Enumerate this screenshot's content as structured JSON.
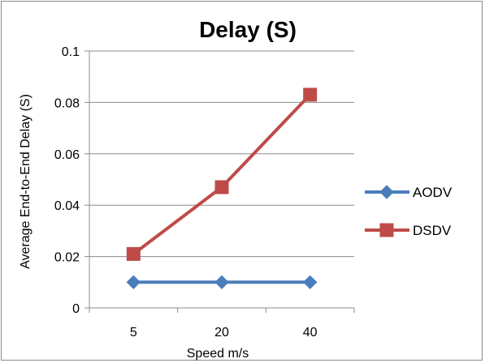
{
  "chart_data": {
    "type": "line",
    "title": "Delay (S)",
    "xlabel": "Speed m/s",
    "ylabel": "Average  End-to-End Delay (S)",
    "categories": [
      "5",
      "20",
      "40"
    ],
    "ylim": [
      0,
      0.1
    ],
    "yticks": [
      "0",
      "0.02",
      "0.04",
      "0.06",
      "0.08",
      "0.1"
    ],
    "ytick_values": [
      0,
      0.02,
      0.04,
      0.06,
      0.08,
      0.1
    ],
    "grid": true,
    "legend_position": "right",
    "series": [
      {
        "name": "AODV",
        "values": [
          0.01,
          0.01,
          0.01
        ],
        "color": "#4a7ebb",
        "marker": "diamond"
      },
      {
        "name": "DSDV",
        "values": [
          0.021,
          0.047,
          0.083
        ],
        "color": "#be4b48",
        "marker": "square"
      }
    ]
  }
}
